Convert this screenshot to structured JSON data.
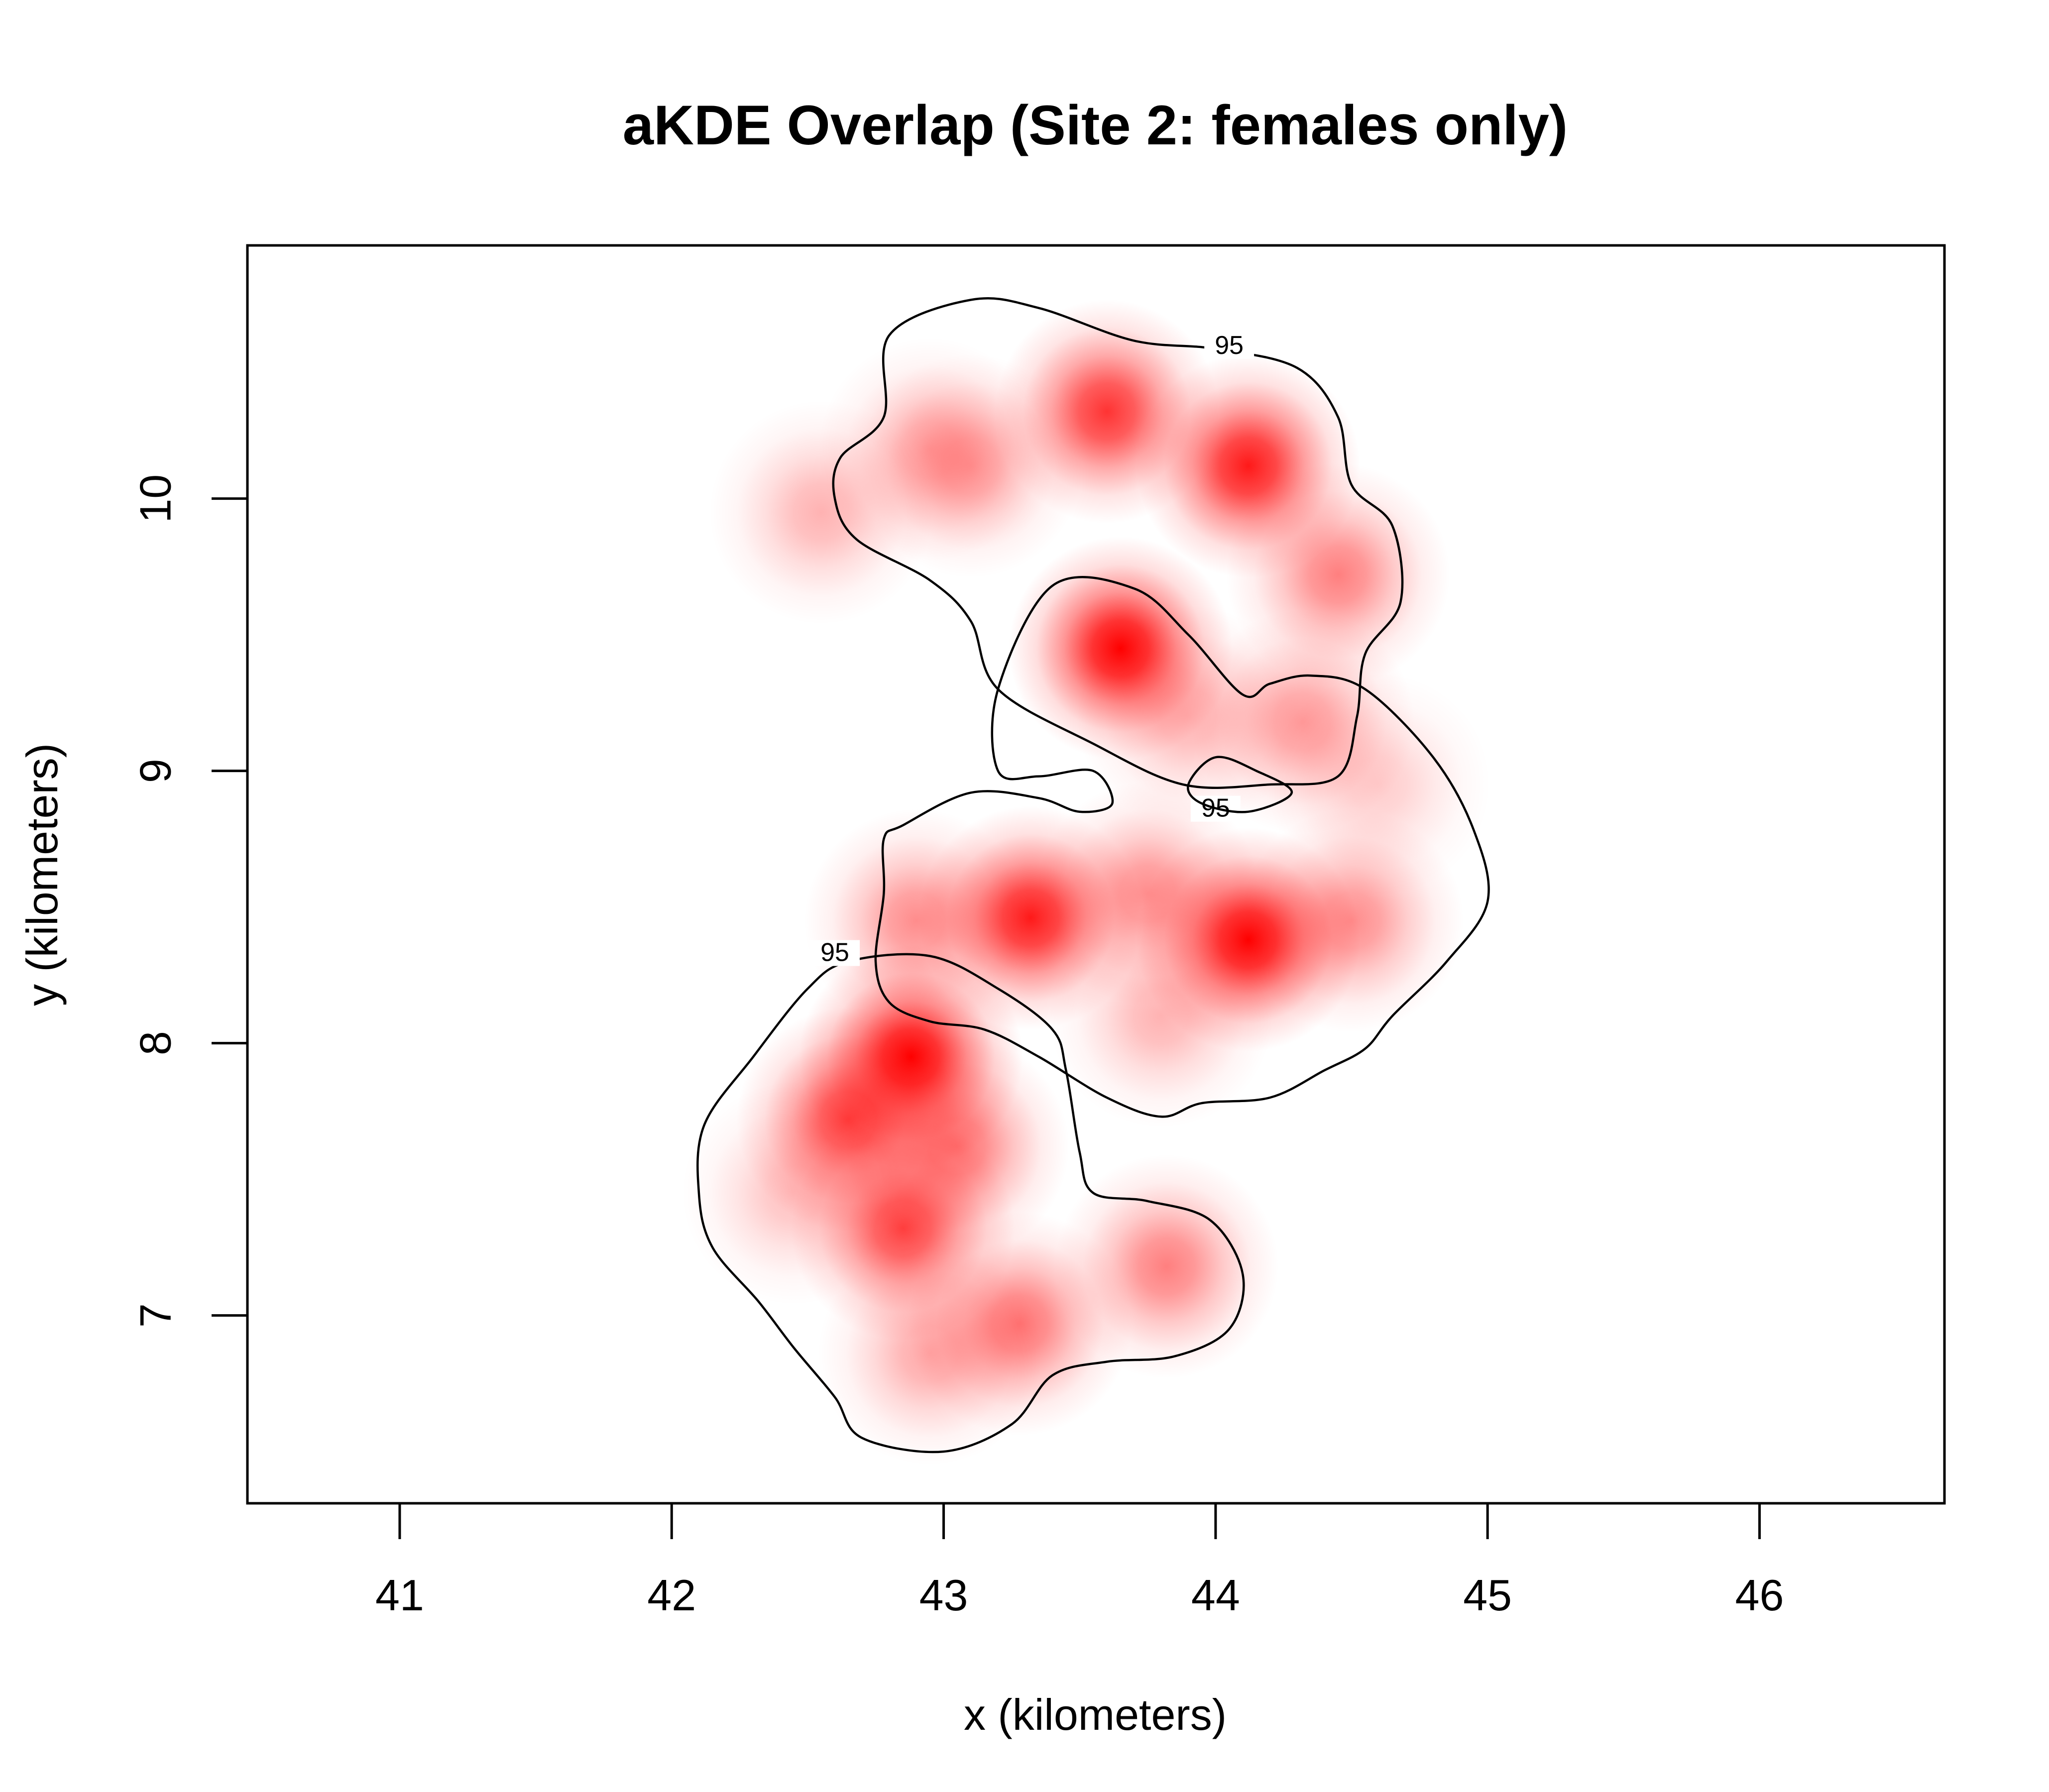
{
  "chart_data": {
    "type": "heatmap",
    "title": "aKDE Overlap (Site 2: females only)",
    "xlabel": "x (kilometers)",
    "ylabel": "y (kilometers)",
    "xlim": [
      40.44,
      46.68
    ],
    "ylim": [
      6.31,
      10.93
    ],
    "xticks": [
      41,
      42,
      43,
      44,
      45,
      46
    ],
    "yticks": [
      7,
      8,
      9,
      10
    ],
    "color": "#ff0000",
    "grid": false,
    "contour_level": "95",
    "density_peaks": [
      {
        "x": 43.6,
        "y": 10.32,
        "w": 0.8
      },
      {
        "x": 44.12,
        "y": 10.12,
        "w": 0.9
      },
      {
        "x": 43.1,
        "y": 10.12,
        "w": 0.35
      },
      {
        "x": 42.95,
        "y": 10.18,
        "w": 0.3
      },
      {
        "x": 42.55,
        "y": 9.95,
        "w": 0.3
      },
      {
        "x": 44.45,
        "y": 9.72,
        "w": 0.5
      },
      {
        "x": 43.65,
        "y": 9.45,
        "w": 1.0
      },
      {
        "x": 43.9,
        "y": 9.2,
        "w": 0.3
      },
      {
        "x": 44.32,
        "y": 9.18,
        "w": 0.4
      },
      {
        "x": 44.6,
        "y": 8.95,
        "w": 0.2
      },
      {
        "x": 43.32,
        "y": 8.46,
        "w": 0.9
      },
      {
        "x": 42.9,
        "y": 8.45,
        "w": 0.45
      },
      {
        "x": 43.75,
        "y": 8.55,
        "w": 0.45
      },
      {
        "x": 44.12,
        "y": 8.38,
        "w": 1.0
      },
      {
        "x": 44.5,
        "y": 8.45,
        "w": 0.45
      },
      {
        "x": 43.8,
        "y": 8.1,
        "w": 0.3
      },
      {
        "x": 42.88,
        "y": 7.95,
        "w": 1.0
      },
      {
        "x": 42.65,
        "y": 7.72,
        "w": 0.75
      },
      {
        "x": 43.05,
        "y": 7.62,
        "w": 0.55
      },
      {
        "x": 42.85,
        "y": 7.32,
        "w": 0.75
      },
      {
        "x": 43.28,
        "y": 6.97,
        "w": 0.55
      },
      {
        "x": 42.95,
        "y": 6.86,
        "w": 0.35
      },
      {
        "x": 43.82,
        "y": 7.18,
        "w": 0.5
      },
      {
        "x": 42.45,
        "y": 7.45,
        "w": 0.25
      }
    ],
    "contours": [
      {
        "label": "95",
        "label_position": [
          44.05,
          10.55
        ],
        "points": [
          [
            42.8,
            10.6
          ],
          [
            43.1,
            10.73
          ],
          [
            43.35,
            10.7
          ],
          [
            43.7,
            10.58
          ],
          [
            44.0,
            10.55
          ],
          [
            44.3,
            10.48
          ],
          [
            44.45,
            10.3
          ],
          [
            44.5,
            10.05
          ],
          [
            44.65,
            9.9
          ],
          [
            44.68,
            9.62
          ],
          [
            44.55,
            9.43
          ],
          [
            44.52,
            9.2
          ],
          [
            44.45,
            8.98
          ],
          [
            44.2,
            8.95
          ],
          [
            43.88,
            8.95
          ],
          [
            43.55,
            9.1
          ],
          [
            43.2,
            9.3
          ],
          [
            43.1,
            9.55
          ],
          [
            42.95,
            9.7
          ],
          [
            42.68,
            9.85
          ],
          [
            42.6,
            10.0
          ],
          [
            42.62,
            10.15
          ],
          [
            42.78,
            10.3
          ]
        ]
      },
      {
        "label": "95",
        "label_position": [
          44.0,
          8.85
        ],
        "points": [
          [
            43.4,
            9.68
          ],
          [
            43.7,
            9.67
          ],
          [
            43.9,
            9.5
          ],
          [
            44.1,
            9.28
          ],
          [
            44.2,
            9.32
          ],
          [
            44.35,
            9.35
          ],
          [
            44.55,
            9.3
          ],
          [
            44.8,
            9.05
          ],
          [
            44.95,
            8.78
          ],
          [
            45.0,
            8.52
          ],
          [
            44.85,
            8.3
          ],
          [
            44.65,
            8.1
          ],
          [
            44.55,
            7.98
          ],
          [
            44.4,
            7.9
          ],
          [
            44.2,
            7.8
          ],
          [
            43.95,
            7.78
          ],
          [
            43.8,
            7.73
          ],
          [
            43.6,
            7.8
          ],
          [
            43.35,
            7.95
          ],
          [
            43.15,
            8.05
          ],
          [
            42.95,
            8.08
          ],
          [
            42.8,
            8.15
          ],
          [
            42.75,
            8.3
          ],
          [
            42.78,
            8.55
          ],
          [
            42.78,
            8.75
          ],
          [
            42.85,
            8.8
          ],
          [
            43.1,
            8.92
          ],
          [
            43.35,
            8.9
          ],
          [
            43.5,
            8.85
          ],
          [
            43.62,
            8.88
          ],
          [
            43.55,
            9.0
          ],
          [
            43.35,
            8.98
          ],
          [
            43.2,
            9.0
          ],
          [
            43.2,
            9.3
          ]
        ]
      },
      {
        "label": "95",
        "label_position": [
          42.6,
          8.32
        ],
        "points": [
          [
            42.65,
            8.3
          ],
          [
            42.95,
            8.32
          ],
          [
            43.2,
            8.2
          ],
          [
            43.4,
            8.05
          ],
          [
            43.45,
            7.9
          ],
          [
            43.5,
            7.6
          ],
          [
            43.55,
            7.45
          ],
          [
            43.75,
            7.42
          ],
          [
            43.98,
            7.35
          ],
          [
            44.1,
            7.15
          ],
          [
            44.05,
            6.95
          ],
          [
            43.85,
            6.85
          ],
          [
            43.6,
            6.83
          ],
          [
            43.4,
            6.78
          ],
          [
            43.25,
            6.6
          ],
          [
            43.0,
            6.5
          ],
          [
            42.7,
            6.55
          ],
          [
            42.6,
            6.7
          ],
          [
            42.45,
            6.88
          ],
          [
            42.32,
            7.05
          ],
          [
            42.15,
            7.25
          ],
          [
            42.1,
            7.45
          ],
          [
            42.12,
            7.7
          ],
          [
            42.3,
            7.95
          ],
          [
            42.5,
            8.2
          ]
        ]
      },
      {
        "label": "",
        "points": [
          [
            43.9,
            8.95
          ],
          [
            44.0,
            9.05
          ],
          [
            44.15,
            9.0
          ],
          [
            44.28,
            8.92
          ],
          [
            44.12,
            8.85
          ],
          [
            43.95,
            8.88
          ]
        ]
      }
    ]
  }
}
